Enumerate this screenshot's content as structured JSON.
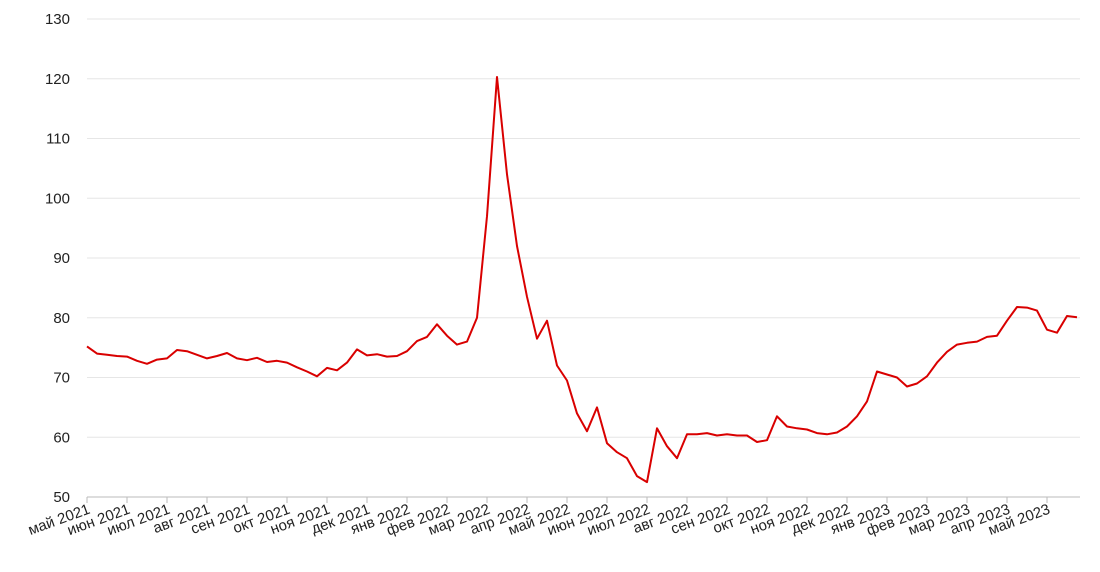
{
  "chart_data": {
    "type": "line",
    "categories": [
      "май 2021",
      null,
      null,
      null,
      "июн 2021",
      null,
      null,
      null,
      "июл 2021",
      null,
      null,
      null,
      "авг 2021",
      null,
      null,
      null,
      "сен 2021",
      null,
      null,
      null,
      "окт 2021",
      null,
      null,
      null,
      "ноя 2021",
      null,
      null,
      null,
      "дек 2021",
      null,
      null,
      null,
      "янв 2022",
      null,
      null,
      null,
      "фев 2022",
      null,
      null,
      null,
      "мар 2022",
      null,
      null,
      null,
      "апр 2022",
      null,
      null,
      null,
      "май 2022",
      null,
      null,
      null,
      "июн 2022",
      null,
      null,
      null,
      "июл 2022",
      null,
      null,
      null,
      "авг 2022",
      null,
      null,
      null,
      "сен 2022",
      null,
      null,
      null,
      "окт 2022",
      null,
      null,
      null,
      "ноя 2022",
      null,
      null,
      null,
      "дек 2022",
      null,
      null,
      null,
      "янв 2023",
      null,
      null,
      null,
      "фев 2023",
      null,
      null,
      null,
      "мар 2023",
      null,
      null,
      null,
      "апр 2023",
      null,
      null,
      null,
      "май 2023",
      null,
      null,
      null
    ],
    "series": [
      {
        "color": "#d90000",
        "values": [
          75.2,
          74.0,
          73.8,
          73.6,
          73.5,
          72.8,
          72.3,
          73.0,
          73.2,
          74.6,
          74.4,
          73.8,
          73.2,
          73.6,
          74.1,
          73.2,
          72.9,
          73.3,
          72.6,
          72.8,
          72.5,
          71.7,
          71.0,
          70.2,
          71.6,
          71.2,
          72.5,
          74.7,
          73.7,
          73.9,
          73.5,
          73.6,
          74.4,
          76.1,
          76.8,
          78.9,
          77.0,
          75.5,
          76.0,
          80.0,
          97,
          120.3,
          104,
          92,
          83.5,
          76.5,
          79.5,
          72,
          69.5,
          64,
          61,
          65,
          59,
          57.5,
          56.5,
          53.5,
          52.5,
          61.5,
          58.5,
          56.5,
          60.5,
          60.5,
          60.7,
          60.3,
          60.5,
          60.3,
          60.3,
          59.2,
          59.5,
          63.5,
          61.8,
          61.5,
          61.3,
          60.7,
          60.5,
          60.8,
          61.8,
          63.5,
          66,
          71,
          70.5,
          70,
          68.5,
          69,
          70.2,
          72.5,
          74.3,
          75.5,
          75.8,
          76,
          76.8,
          77,
          79.5,
          81.8,
          81.7,
          81.2,
          78,
          77.5,
          80.3,
          80.1
        ]
      }
    ],
    "ylim": [
      50,
      130
    ],
    "yticks": [
      50,
      60,
      70,
      80,
      90,
      100,
      110,
      120,
      130
    ],
    "grid": true
  }
}
